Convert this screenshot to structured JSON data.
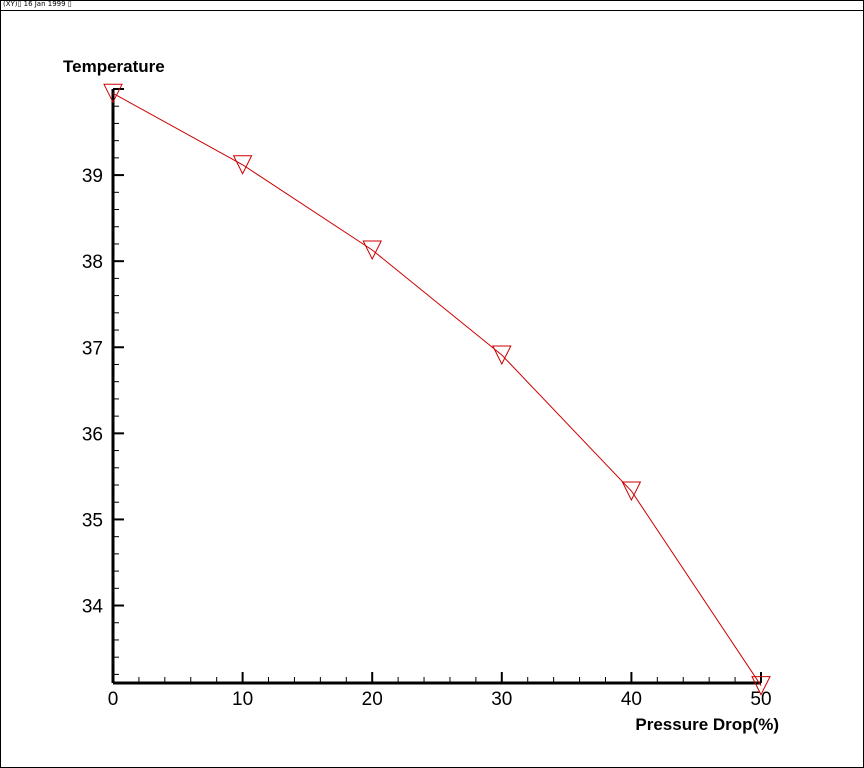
{
  "header": {
    "text": "(XY)▯ 16 Jan 1999 ▯"
  },
  "chart_data": {
    "type": "line",
    "xlabel": "Pressure Drop(%)",
    "ylabel": "Temperature",
    "x": [
      0,
      10,
      20,
      30,
      40,
      50
    ],
    "series": [
      {
        "values": [
          39.95,
          39.12,
          38.13,
          36.91,
          35.33,
          33.07
        ],
        "color": "#cc0000",
        "marker": "triangle-down"
      }
    ],
    "xlim": [
      0,
      50
    ],
    "ylim": [
      33.1,
      40.0
    ],
    "xticks": [
      0,
      10,
      20,
      30,
      40,
      50
    ],
    "yticks": [
      34,
      35,
      36,
      37,
      38,
      39
    ],
    "grid": false
  }
}
